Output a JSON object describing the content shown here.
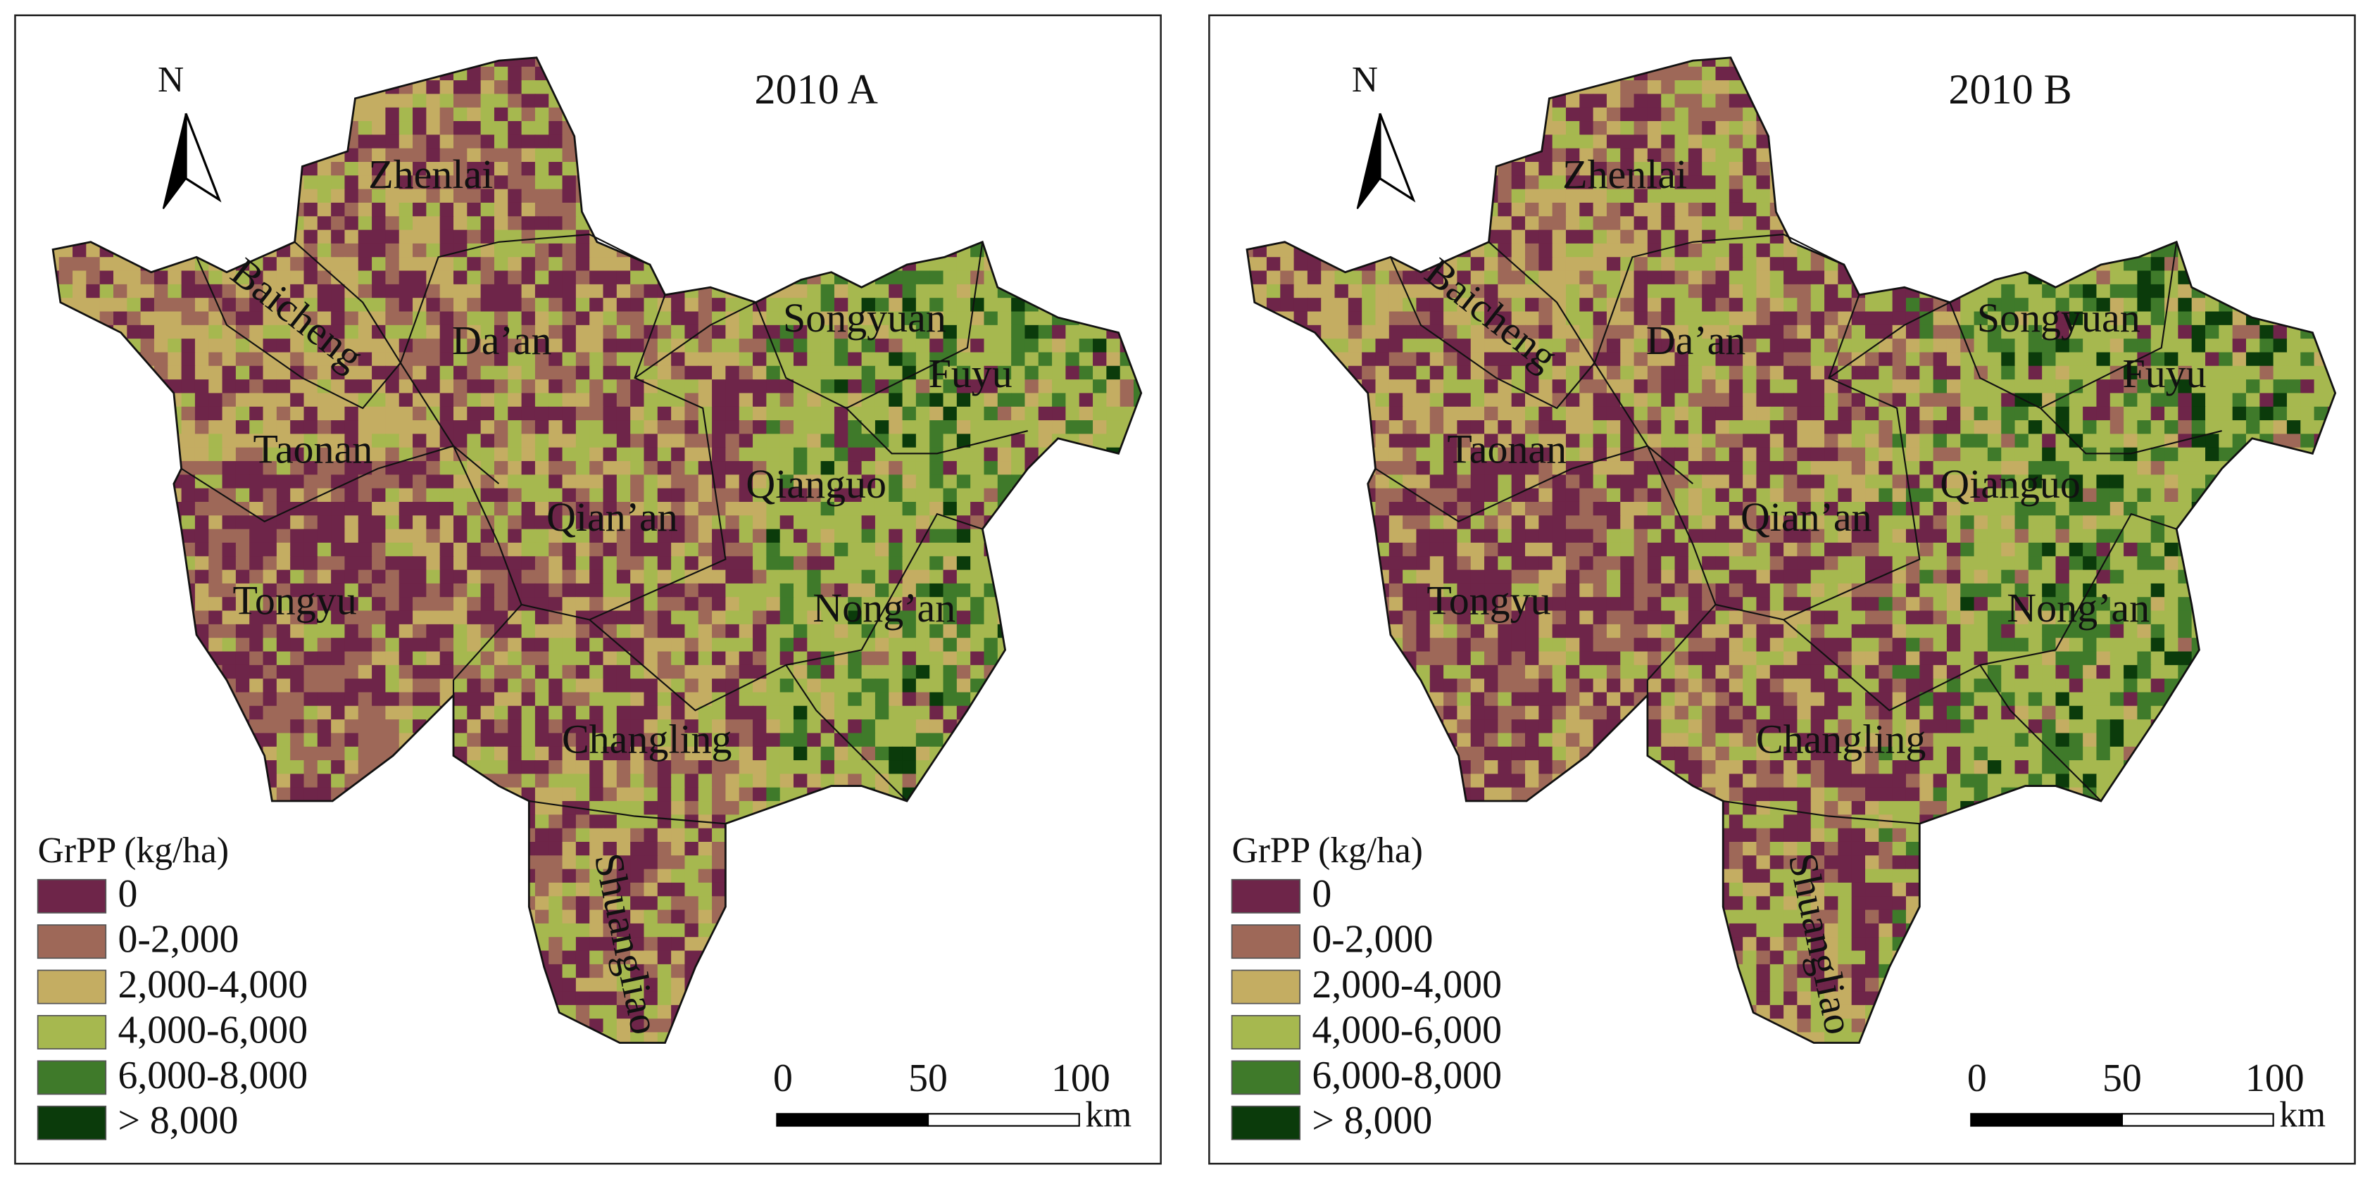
{
  "panels": [
    {
      "title": "2010 A",
      "labels": [
        "Zhenlai",
        "Baicheng",
        "Da’an",
        "Taonan",
        "Songyuan",
        "Fuyu",
        "Qianguo",
        "Qian’an",
        "Tongyu",
        "Nong’an",
        "Changling",
        "Shuangliao"
      ]
    },
    {
      "title": "2010 B",
      "labels": [
        "Zhenlai",
        "Baicheng",
        "Da’an",
        "Taonan",
        "Songyuan",
        "Fuyu",
        "Qianguo",
        "Qian’an",
        "Tongyu",
        "Nong’an",
        "Changling",
        "Shuangliao"
      ]
    }
  ],
  "legend": {
    "title": "GrPP (kg/ha)",
    "items": [
      {
        "label": "0",
        "color": "#6e2549"
      },
      {
        "label": "0-2,000",
        "color": "#9e6858"
      },
      {
        "label": "2,000-4,000",
        "color": "#c4ad62"
      },
      {
        "label": "4,000-6,000",
        "color": "#a6b84f"
      },
      {
        "label": "6,000-8,000",
        "color": "#3f7a2a"
      },
      {
        "label": "> 8,000",
        "color": "#0b3b0b"
      }
    ]
  },
  "scale_bar": {
    "ticks": [
      "0",
      "50",
      "100"
    ],
    "unit": "km"
  },
  "north": "N"
}
